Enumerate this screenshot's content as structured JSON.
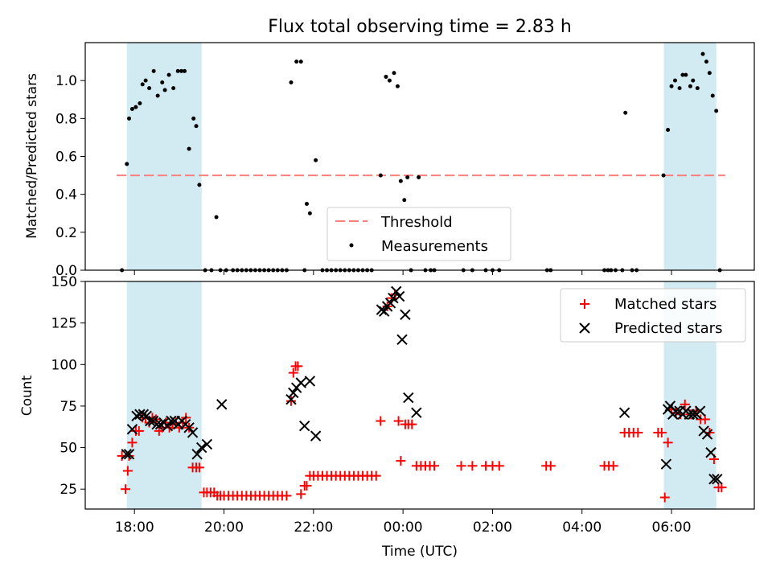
{
  "figure": {
    "title": "Flux total observing time = 2.83 h",
    "colors": {
      "shade": "#add8e6",
      "threshold": "#ff7f7f",
      "matched": "#ff0000",
      "predicted": "#000000",
      "measurement": "#000000"
    }
  },
  "chart_data": [
    {
      "type": "scatter",
      "panel": "top",
      "title": "Flux total observing time = 2.83 h",
      "xlabel": "",
      "ylabel": "Matched/Predicted stars",
      "xlim_hours": [
        16.9,
        31.85
      ],
      "ylim": [
        0,
        1.2
      ],
      "yticks": [
        0.0,
        0.2,
        0.4,
        0.6,
        0.8,
        1.0
      ],
      "yticklabels": [
        "0.0",
        "0.2",
        "0.4",
        "0.6",
        "0.8",
        "1.0"
      ],
      "shaded_intervals_hours": [
        [
          17.83,
          19.5
        ],
        [
          29.83,
          31.0
        ]
      ],
      "threshold": 0.5,
      "legend": {
        "position": "lower-center",
        "entries": [
          "Threshold",
          "Measurements"
        ]
      },
      "series": [
        {
          "name": "Measurements",
          "x_hours": [
            17.72,
            17.83,
            17.88,
            17.95,
            18.03,
            18.12,
            18.18,
            18.25,
            18.33,
            18.43,
            18.52,
            18.62,
            18.68,
            18.77,
            18.87,
            18.97,
            19.05,
            19.12,
            19.22,
            19.32,
            19.38,
            19.45,
            19.58,
            19.72,
            19.83,
            19.92,
            20.05,
            20.2,
            20.3,
            20.4,
            20.5,
            20.6,
            20.7,
            20.8,
            20.9,
            21.0,
            21.1,
            21.2,
            21.3,
            21.4,
            21.5,
            21.62,
            21.72,
            21.8,
            21.85,
            21.92,
            22.05,
            22.2,
            22.3,
            22.4,
            22.5,
            22.6,
            22.7,
            22.8,
            22.9,
            23.0,
            23.1,
            23.2,
            23.3,
            23.5,
            23.62,
            23.7,
            23.8,
            23.88,
            23.95,
            24.03,
            24.1,
            24.18,
            24.35,
            24.5,
            24.62,
            24.7,
            25.35,
            25.55,
            25.85,
            26.0,
            26.15,
            27.22,
            27.3,
            28.5,
            28.58,
            28.65,
            28.75,
            28.9,
            28.97,
            29.12,
            29.22,
            29.82,
            29.92,
            30.0,
            30.08,
            30.18,
            30.25,
            30.32,
            30.42,
            30.48,
            30.58,
            30.7,
            30.78,
            30.85,
            30.92,
            31.0,
            31.08
          ],
          "y": [
            0.0,
            0.56,
            0.8,
            0.85,
            0.86,
            0.88,
            0.98,
            1.0,
            0.96,
            1.05,
            0.92,
            0.99,
            0.95,
            1.03,
            0.96,
            1.05,
            1.05,
            1.05,
            0.64,
            0.8,
            0.76,
            0.45,
            0.0,
            0.0,
            0.28,
            0.0,
            0.0,
            0.0,
            0.0,
            0.0,
            0.0,
            0.0,
            0.0,
            0.0,
            0.0,
            0.0,
            0.0,
            0.0,
            0.0,
            0.0,
            0.99,
            1.1,
            1.1,
            0.0,
            0.35,
            0.3,
            0.58,
            0.0,
            0.0,
            0.0,
            0.0,
            0.0,
            0.0,
            0.0,
            0.0,
            0.0,
            0.0,
            0.0,
            0.0,
            0.5,
            1.02,
            1.0,
            1.04,
            0.97,
            0.47,
            0.37,
            0.49,
            0.0,
            0.49,
            0.0,
            0.0,
            0.0,
            0.0,
            0.0,
            0.0,
            0.0,
            0.0,
            0.0,
            0.0,
            0.0,
            0.0,
            0.0,
            0.0,
            0.0,
            0.83,
            0.0,
            0.0,
            0.5,
            0.74,
            0.97,
            1.0,
            0.96,
            1.03,
            1.03,
            0.97,
            1.0,
            0.96,
            1.14,
            1.1,
            1.04,
            0.92,
            0.84,
            0.0
          ]
        }
      ]
    },
    {
      "type": "scatter",
      "panel": "bottom",
      "xlabel": "Time (UTC)",
      "ylabel": "Count",
      "xlim_hours": [
        16.9,
        31.85
      ],
      "ylim": [
        13,
        150
      ],
      "yticks": [
        25,
        50,
        75,
        100,
        125,
        150
      ],
      "yticklabels": [
        "25",
        "50",
        "75",
        "100",
        "125",
        "150"
      ],
      "xticks_hours": [
        18,
        20,
        22,
        24,
        26,
        28,
        30
      ],
      "xticklabels": [
        "18:00",
        "20:00",
        "22:00",
        "00:00",
        "02:00",
        "04:00",
        "06:00"
      ],
      "shaded_intervals_hours": [
        [
          17.83,
          19.5
        ],
        [
          29.83,
          31.0
        ]
      ],
      "legend": {
        "position": "top-right",
        "entries": [
          "Matched stars",
          "Predicted stars"
        ]
      },
      "series": [
        {
          "name": "Matched stars",
          "marker": "plus",
          "x_hours": [
            17.72,
            17.8,
            17.85,
            17.88,
            17.95,
            18.03,
            18.1,
            18.18,
            18.25,
            18.33,
            18.4,
            18.48,
            18.55,
            18.62,
            18.7,
            18.78,
            18.85,
            18.93,
            19.0,
            19.08,
            19.15,
            19.22,
            19.3,
            19.38,
            19.45,
            19.55,
            19.62,
            19.7,
            19.78,
            19.85,
            19.92,
            20.0,
            20.1,
            20.2,
            20.3,
            20.4,
            20.5,
            20.6,
            20.7,
            20.8,
            20.9,
            21.0,
            21.1,
            21.2,
            21.3,
            21.4,
            21.5,
            21.55,
            21.6,
            21.65,
            21.72,
            21.8,
            21.85,
            21.92,
            22.0,
            22.1,
            22.2,
            22.3,
            22.4,
            22.5,
            22.6,
            22.7,
            22.8,
            22.9,
            23.0,
            23.1,
            23.2,
            23.3,
            23.4,
            23.5,
            23.65,
            23.75,
            23.82,
            23.9,
            23.95,
            24.05,
            24.12,
            24.2,
            24.3,
            24.4,
            24.5,
            24.6,
            24.7,
            25.3,
            25.55,
            25.85,
            26.0,
            26.15,
            27.2,
            27.3,
            28.5,
            28.6,
            28.7,
            28.95,
            29.05,
            29.15,
            29.25,
            29.7,
            29.78,
            29.85,
            29.92,
            30.0,
            30.1,
            30.2,
            30.3,
            30.42,
            30.55,
            30.65,
            30.75,
            30.85,
            30.95,
            31.05,
            31.12
          ],
          "y": [
            45,
            25,
            36,
            45,
            53,
            60,
            60,
            68,
            68,
            65,
            68,
            67,
            60,
            62,
            65,
            62,
            64,
            65,
            62,
            65,
            68,
            62,
            38,
            38,
            38,
            23,
            23,
            23,
            23,
            21,
            21,
            21,
            21,
            21,
            21,
            21,
            21,
            21,
            21,
            21,
            21,
            21,
            21,
            21,
            21,
            21,
            78,
            95,
            99,
            99,
            22,
            27,
            27,
            33,
            33,
            33,
            33,
            33,
            33,
            33,
            33,
            33,
            33,
            33,
            33,
            33,
            33,
            33,
            33,
            66,
            135,
            140,
            142,
            66,
            42,
            64,
            64,
            64,
            39,
            39,
            39,
            39,
            39,
            39,
            39,
            39,
            39,
            39,
            39,
            39,
            39,
            39,
            39,
            59,
            59,
            59,
            59,
            59,
            59,
            20,
            53,
            73,
            71,
            70,
            76,
            70,
            72,
            67,
            67,
            59,
            43,
            26,
            26
          ],
          "color": "#ff0000"
        },
        {
          "name": "Predicted stars",
          "marker": "x",
          "x_hours": [
            17.82,
            17.88,
            17.95,
            18.05,
            18.12,
            18.2,
            18.27,
            18.35,
            18.42,
            18.5,
            18.58,
            18.66,
            18.74,
            18.82,
            18.9,
            18.98,
            19.06,
            19.14,
            19.22,
            19.3,
            19.4,
            19.5,
            19.62,
            19.95,
            21.5,
            21.55,
            21.62,
            21.72,
            21.8,
            21.92,
            22.05,
            23.52,
            23.58,
            23.65,
            23.72,
            23.78,
            23.85,
            23.92,
            23.98,
            24.05,
            24.12,
            24.3,
            28.95,
            29.88,
            29.92,
            29.97,
            30.03,
            30.1,
            30.18,
            30.25,
            30.32,
            30.4,
            30.48,
            30.56,
            30.64,
            30.72,
            30.8,
            30.88,
            30.95,
            31.02
          ],
          "y": [
            46,
            46,
            61,
            69,
            70,
            70,
            69,
            66,
            66,
            64,
            64,
            65,
            63,
            66,
            66,
            64,
            66,
            64,
            62,
            59,
            46,
            50,
            52,
            76,
            79,
            83,
            86,
            89,
            63,
            90,
            57,
            133,
            132,
            135,
            137,
            140,
            144,
            141,
            115,
            130,
            80,
            71,
            71,
            40,
            73,
            75,
            70,
            72,
            72,
            70,
            72,
            70,
            70,
            70,
            72,
            60,
            58,
            47,
            31,
            31
          ],
          "color": "#000000"
        }
      ]
    }
  ]
}
